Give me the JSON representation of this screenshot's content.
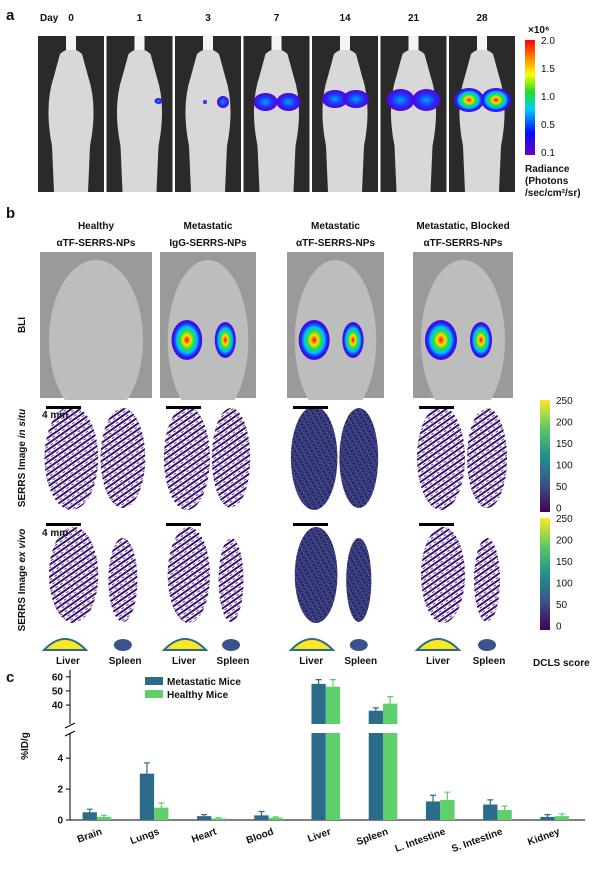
{
  "panel_a": {
    "label": "a",
    "day_label": "Day",
    "days": [
      "0",
      "1",
      "3",
      "7",
      "14",
      "21",
      "28"
    ],
    "colorbar": {
      "multiplier": "×10⁶",
      "ticks": [
        "2.0",
        "1.5",
        "1.0",
        "0.5",
        "0.1"
      ]
    },
    "unit_lines": [
      "Radiance",
      "(Photons",
      "/sec/cm²/sr)"
    ]
  },
  "panel_b": {
    "label": "b",
    "columns": [
      [
        "Healthy",
        "αTF-SERRS-NPs"
      ],
      [
        "Metastatic",
        "IgG-SERRS-NPs"
      ],
      [
        "Metastatic",
        "αTF-SERRS-NPs"
      ],
      [
        "Metastatic, Blocked",
        "αTF-SERRS-NPs"
      ]
    ],
    "rows": {
      "bli": "BLI",
      "in_situ": [
        "SERRS Image ",
        "in situ"
      ],
      "ex_vivo": [
        "SERRS Image ",
        "ex vivo"
      ]
    },
    "scale_bar": "4 mm",
    "colorbar_ticks": [
      "250",
      "200",
      "150",
      "100",
      "50",
      "0"
    ],
    "colorbar_label": "DCLS score",
    "organs": [
      "Liver",
      "Spleen"
    ]
  },
  "chart_data": {
    "type": "bar",
    "panel_label": "c",
    "ylabel": "%ID/g",
    "categories": [
      "Brain",
      "Lungs",
      "Heart",
      "Blood",
      "Liver",
      "Spleen",
      "L. Intestine",
      "S. Intestine",
      "Kidney"
    ],
    "series": [
      {
        "name": "Metastatic Mice",
        "color": "#2d6b8a",
        "values": [
          0.5,
          3.0,
          0.25,
          0.3,
          55,
          36,
          1.2,
          1.0,
          0.2
        ],
        "errors": [
          0.2,
          0.7,
          0.1,
          0.25,
          3,
          2,
          0.4,
          0.3,
          0.15
        ]
      },
      {
        "name": "Healthy Mice",
        "color": "#5fcf6c",
        "values": [
          0.2,
          0.8,
          0.1,
          0.15,
          53,
          41,
          1.3,
          0.65,
          0.25
        ],
        "errors": [
          0.1,
          0.3,
          0.05,
          0.05,
          5,
          5,
          0.5,
          0.25,
          0.15
        ]
      }
    ],
    "ylim": [
      0,
      62
    ],
    "axis_break": [
      5.5,
      28
    ],
    "yticks": [
      0,
      2,
      4,
      40,
      50,
      60
    ]
  }
}
